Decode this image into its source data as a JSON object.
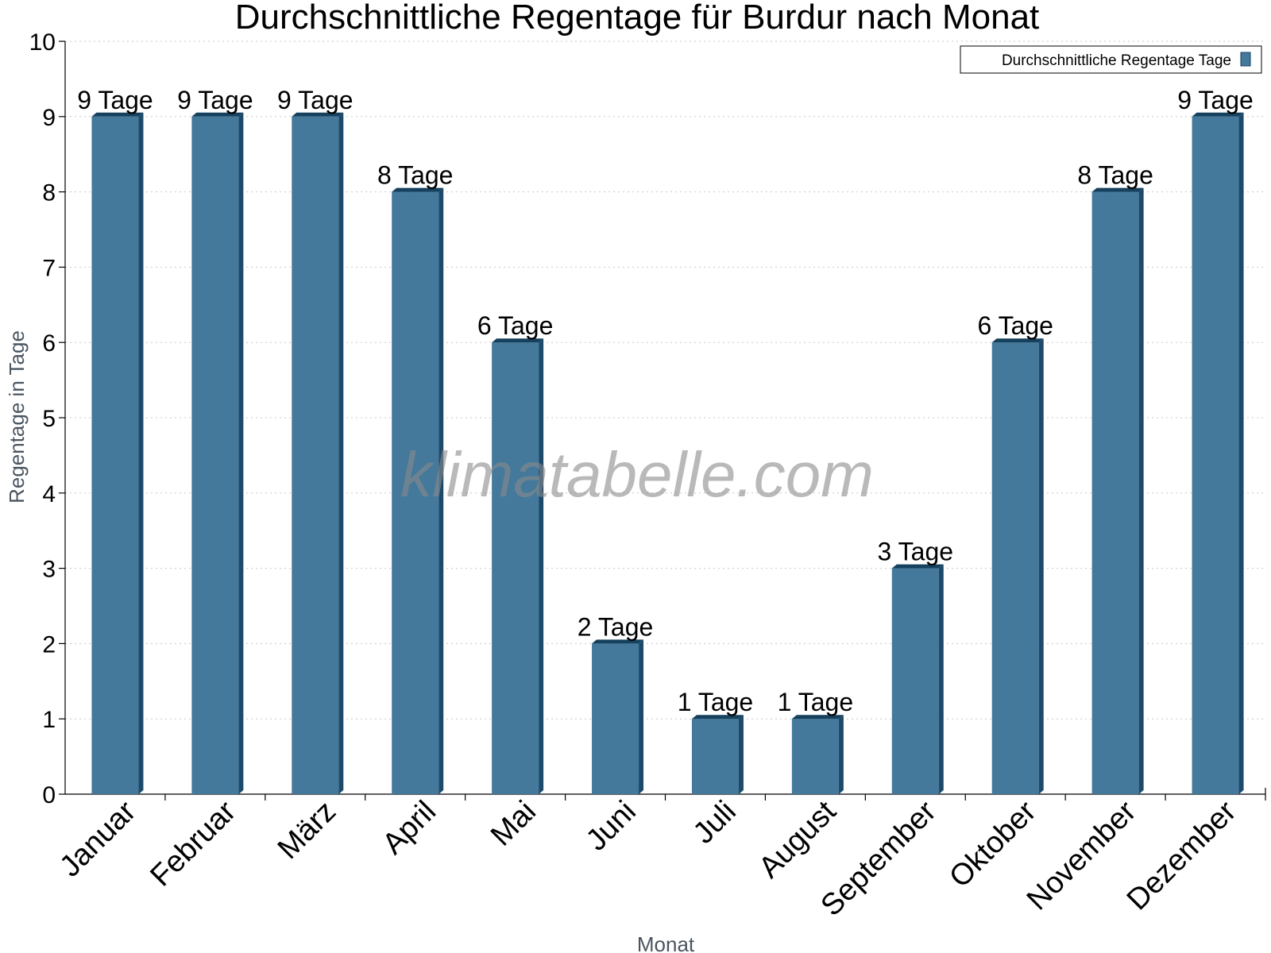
{
  "colors": {
    "bar_front": "#44799b",
    "bar_side": "#1d4a6b",
    "bar_top": "#16415e"
  },
  "watermark": "klimatabelle.com",
  "chart_data": {
    "type": "bar",
    "title": "Durchschnittliche Regentage für Burdur nach Monat",
    "xlabel": "Monat",
    "ylabel": "Regentage in Tage",
    "categories": [
      "Januar",
      "Februar",
      "März",
      "April",
      "Mai",
      "Juni",
      "Juli",
      "August",
      "September",
      "Oktober",
      "November",
      "Dezember"
    ],
    "series": [
      {
        "name": "Durchschnittliche Regentage Tage",
        "values": [
          9,
          9,
          9,
          8,
          6,
          2,
          1,
          1,
          3,
          6,
          8,
          9
        ]
      }
    ],
    "data_labels": [
      "9 Tage",
      "9 Tage",
      "9 Tage",
      "8 Tage",
      "6 Tage",
      "2 Tage",
      "1 Tage",
      "1 Tage",
      "3 Tage",
      "6 Tage",
      "8 Tage",
      "9 Tage"
    ],
    "ylim": [
      0,
      10
    ],
    "yticks": [
      "0",
      "1",
      "2",
      "3",
      "4",
      "5",
      "6",
      "7",
      "8",
      "9",
      "10"
    ],
    "grid": true,
    "legend_position": "top-right"
  }
}
